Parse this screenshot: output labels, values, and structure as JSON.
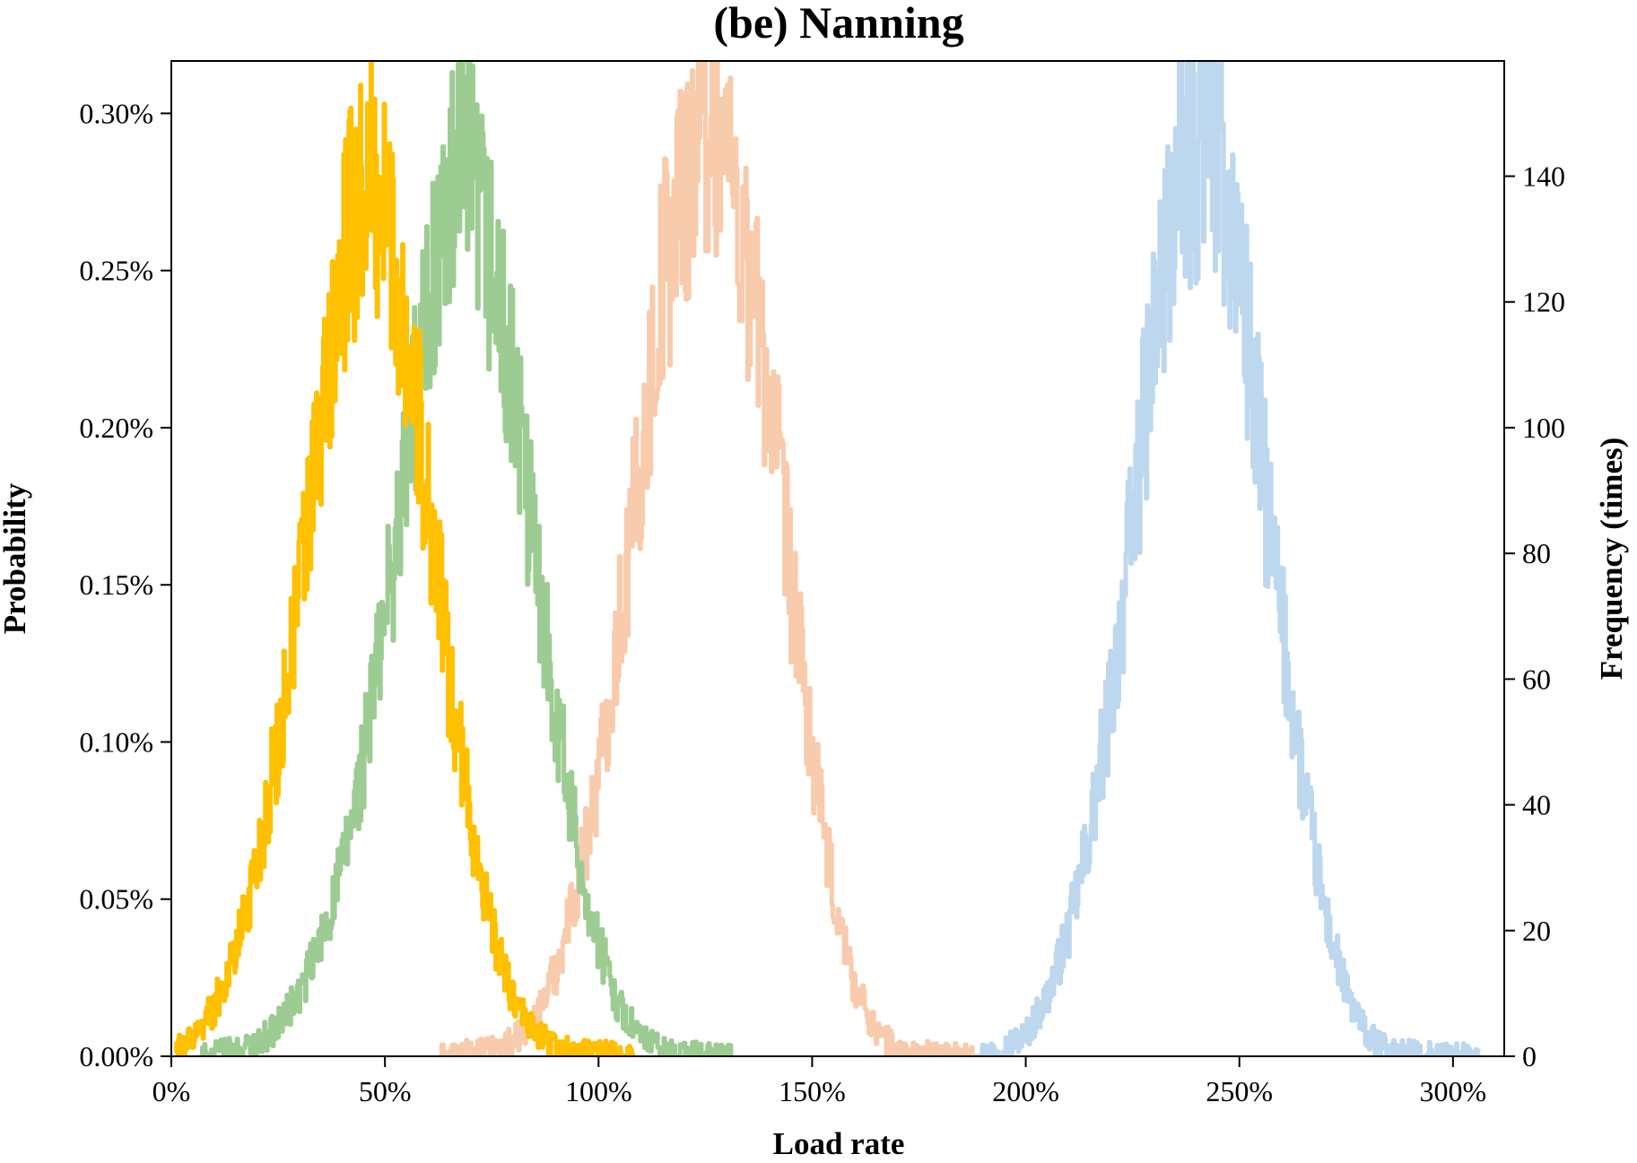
{
  "chart_data": {
    "type": "line",
    "title": "(be) Nanning",
    "xlabel": "Load rate",
    "ylabel": "Probability",
    "y2label": "Frequency (times)",
    "xlim": [
      0,
      3.12
    ],
    "ylim": [
      0,
      0.0031667
    ],
    "y2lim": [
      0,
      158.33
    ],
    "grid": false,
    "legend": "none",
    "x_ticks": [
      0,
      0.5,
      1.0,
      1.5,
      2.0,
      2.5,
      3.0
    ],
    "x_tick_labels": [
      "0%",
      "50%",
      "100%",
      "150%",
      "200%",
      "250%",
      "300%"
    ],
    "y_ticks": [
      0,
      0.0005,
      0.001,
      0.0015,
      0.002,
      0.0025,
      0.003
    ],
    "y_tick_labels": [
      "0.00%",
      "0.05%",
      "0.10%",
      "0.15%",
      "0.20%",
      "0.25%",
      "0.30%"
    ],
    "y2_ticks": [
      0,
      20,
      40,
      60,
      80,
      100,
      120,
      140
    ],
    "y2_tick_labels": [
      "0",
      "20",
      "40",
      "60",
      "80",
      "100",
      "120",
      "140"
    ],
    "series": [
      {
        "color": "#bdd7ee",
        "x_range": [
          1.88,
          3.06
        ],
        "peak_x": 2.42,
        "x": [
          1.88,
          1.95,
          2.0,
          2.05,
          2.1,
          2.15,
          2.2,
          2.25,
          2.3,
          2.35,
          2.4,
          2.42,
          2.45,
          2.5,
          2.55,
          2.6,
          2.65,
          2.7,
          2.75,
          2.8,
          2.85,
          2.9,
          3.06
        ],
        "y": [
          0.0,
          3e-05,
          7e-05,
          0.00019,
          0.0004,
          0.00072,
          0.00115,
          0.0017,
          0.0023,
          0.00275,
          0.0029,
          0.003,
          0.0029,
          0.0025,
          0.0019,
          0.00135,
          0.00085,
          0.00045,
          0.0002,
          6e-05,
          2e-05,
          1e-05,
          0.0
        ]
      },
      {
        "color": "#f8cbad",
        "x_range": [
          0.63,
          1.88
        ],
        "peak_x": 1.25,
        "x": [
          0.63,
          0.75,
          0.8,
          0.85,
          0.9,
          0.95,
          1.0,
          1.05,
          1.1,
          1.15,
          1.2,
          1.25,
          1.3,
          1.35,
          1.4,
          1.45,
          1.5,
          1.55,
          1.6,
          1.65,
          1.7,
          1.75,
          1.88
        ],
        "y": [
          0.0,
          2e-05,
          5e-05,
          0.00011,
          0.00028,
          0.00055,
          0.0009,
          0.0014,
          0.0019,
          0.0025,
          0.0028,
          0.003,
          0.0029,
          0.0025,
          0.0021,
          0.0015,
          0.00095,
          0.0005,
          0.00022,
          8e-05,
          2e-05,
          1e-05,
          0.0
        ]
      },
      {
        "color": "#9dcc93",
        "x_range": [
          0.07,
          1.31
        ],
        "peak_x": 0.68,
        "x": [
          0.07,
          0.15,
          0.2,
          0.25,
          0.3,
          0.35,
          0.4,
          0.45,
          0.5,
          0.55,
          0.6,
          0.65,
          0.7,
          0.75,
          0.8,
          0.85,
          0.9,
          0.95,
          1.0,
          1.05,
          1.1,
          1.15,
          1.2,
          1.31
        ],
        "y": [
          0.0,
          2e-05,
          4e-05,
          0.0001,
          0.0002,
          0.00037,
          0.0006,
          0.00095,
          0.0014,
          0.0019,
          0.0024,
          0.0027,
          0.0028,
          0.0025,
          0.0021,
          0.0016,
          0.0011,
          0.00065,
          0.00035,
          0.00015,
          6e-05,
          2e-05,
          1e-05,
          0.0
        ]
      },
      {
        "color": "#ffc000",
        "x_range": [
          0.01,
          1.08
        ],
        "peak_x": 0.47,
        "x": [
          0.01,
          0.05,
          0.1,
          0.15,
          0.2,
          0.25,
          0.3,
          0.35,
          0.4,
          0.45,
          0.5,
          0.55,
          0.6,
          0.65,
          0.7,
          0.75,
          0.8,
          0.85,
          0.9,
          0.95,
          1.0,
          1.08
        ],
        "y": [
          2e-05,
          6e-05,
          0.00016,
          0.00033,
          0.00062,
          0.001,
          0.0015,
          0.002,
          0.0025,
          0.0028,
          0.0027,
          0.0023,
          0.0018,
          0.0012,
          0.00075,
          0.0004,
          0.00018,
          7e-05,
          3e-05,
          1e-05,
          1e-05,
          0.0
        ]
      }
    ]
  }
}
